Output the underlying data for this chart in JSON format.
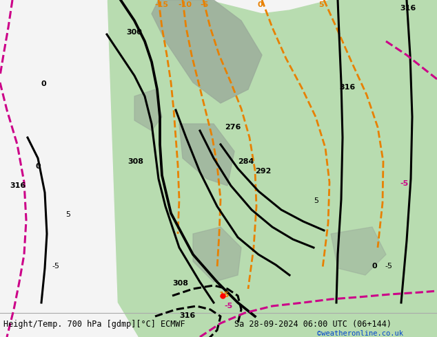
{
  "title_left": "Height/Temp. 700 hPa [gdmp][°C] ECMWF",
  "title_right": "Sa 28-09-2024 06:00 UTC (06+144)",
  "credit": "©weatheronline.co.uk",
  "bg_color": "#dcdcdc",
  "green_color": "#b8dcb0",
  "white_color": "#f4f4f4",
  "gray_color": "#9aab9a",
  "black": "#000000",
  "orange": "#e88000",
  "red_orange": "#dd4400",
  "magenta": "#cc0088",
  "blue_link": "#0044cc",
  "figsize": [
    6.34,
    4.9
  ],
  "dpi": 100
}
